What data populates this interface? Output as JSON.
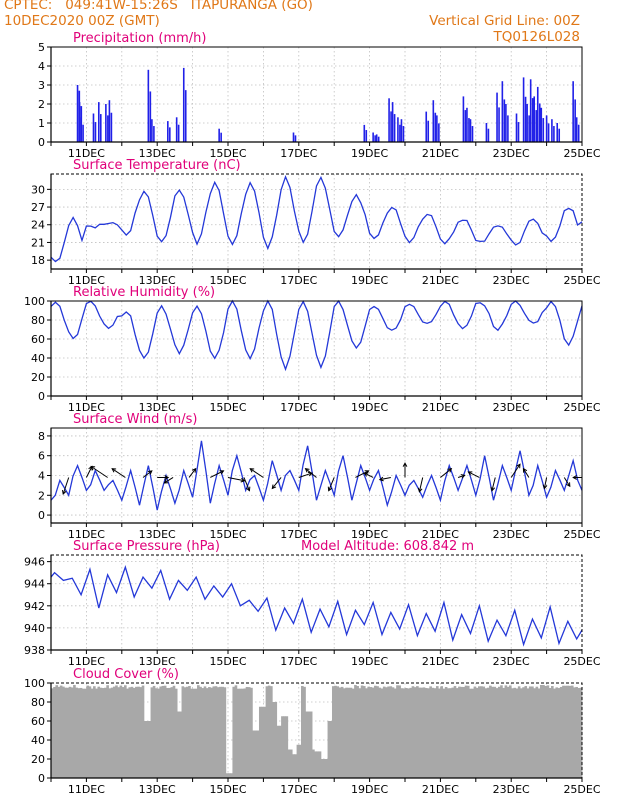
{
  "header": {
    "line1_left": "CPTEC:   049:41W-15:26S   ITAPURANGA (GO)",
    "line2_left": "10DEC2020 00Z (GMT)",
    "line2_right": "Vertical Grid Line: 00Z",
    "line3_right": "TQ0126L028"
  },
  "colors": {
    "header": "#e07818",
    "title": "#e0007a",
    "series": "#2438d8",
    "bars": "#2020e8",
    "cloud": "#a8a8a8"
  },
  "chart_data": [
    {
      "type": "bar",
      "title": "Precipitation (mm/h)",
      "ylim": [
        0,
        5
      ],
      "yticks": [
        0,
        1,
        2,
        3,
        4,
        5
      ],
      "xlim_days": [
        10.0,
        25.0
      ],
      "xtick_labels": [
        "11DEC",
        "13DEC",
        "15DEC",
        "17DEC",
        "19DEC",
        "21DEC",
        "23DEC",
        "25DEC"
      ],
      "spikes": [
        {
          "day": 10.75,
          "value": 3.0
        },
        {
          "day": 10.8,
          "value": 2.7
        },
        {
          "day": 10.85,
          "value": 1.3
        },
        {
          "day": 11.2,
          "value": 1.5
        },
        {
          "day": 11.35,
          "value": 2.1
        },
        {
          "day": 11.55,
          "value": 2.0
        },
        {
          "day": 11.65,
          "value": 2.2
        },
        {
          "day": 12.75,
          "value": 3.8
        },
        {
          "day": 12.85,
          "value": 1.2
        },
        {
          "day": 13.3,
          "value": 1.1
        },
        {
          "day": 13.55,
          "value": 1.3
        },
        {
          "day": 13.75,
          "value": 3.9
        },
        {
          "day": 14.75,
          "value": 0.7
        },
        {
          "day": 16.85,
          "value": 0.5
        },
        {
          "day": 18.85,
          "value": 0.9
        },
        {
          "day": 19.1,
          "value": 0.5
        },
        {
          "day": 19.2,
          "value": 0.4
        },
        {
          "day": 19.55,
          "value": 2.3
        },
        {
          "day": 19.65,
          "value": 2.1
        },
        {
          "day": 19.8,
          "value": 1.3
        },
        {
          "day": 19.9,
          "value": 1.2
        },
        {
          "day": 20.6,
          "value": 1.6
        },
        {
          "day": 20.8,
          "value": 2.2
        },
        {
          "day": 20.9,
          "value": 1.4
        },
        {
          "day": 21.65,
          "value": 2.4
        },
        {
          "day": 21.75,
          "value": 1.8
        },
        {
          "day": 21.85,
          "value": 1.2
        },
        {
          "day": 22.3,
          "value": 1.0
        },
        {
          "day": 22.6,
          "value": 2.6
        },
        {
          "day": 22.75,
          "value": 3.2
        },
        {
          "day": 22.85,
          "value": 2.0
        },
        {
          "day": 23.15,
          "value": 1.5
        },
        {
          "day": 23.35,
          "value": 3.4
        },
        {
          "day": 23.45,
          "value": 2.0
        },
        {
          "day": 23.55,
          "value": 3.3
        },
        {
          "day": 23.65,
          "value": 2.4
        },
        {
          "day": 23.75,
          "value": 2.9
        },
        {
          "day": 23.85,
          "value": 1.8
        },
        {
          "day": 24.0,
          "value": 1.4
        },
        {
          "day": 24.15,
          "value": 1.2
        },
        {
          "day": 24.3,
          "value": 1.0
        },
        {
          "day": 24.75,
          "value": 3.2
        },
        {
          "day": 24.85,
          "value": 1.3
        }
      ]
    },
    {
      "type": "line",
      "title": "Surface Temperature (nC)",
      "ylim": [
        16.5,
        32.6
      ],
      "yticks": [
        18,
        21,
        24,
        27,
        30
      ],
      "xlim_days": [
        10.0,
        25.0
      ],
      "xtick_labels": [
        "11DEC",
        "13DEC",
        "15DEC",
        "17DEC",
        "19DEC",
        "21DEC",
        "23DEC",
        "25DEC"
      ],
      "daily_min": [
        17.5,
        23.5,
        22.0,
        21.0,
        21.0,
        20.5,
        20.0,
        21.0,
        22.0,
        21.5,
        21.0,
        21.0,
        21.0,
        20.5,
        21.0
      ],
      "daily_max": [
        25.0,
        24.5,
        29.5,
        30.0,
        31.0,
        31.0,
        32.0,
        32.0,
        29.0,
        27.0,
        26.0,
        25.0,
        24.0,
        25.0,
        27.0
      ],
      "end_value": 24.5
    },
    {
      "type": "line",
      "title": "Relative Humidity (%)",
      "ylim": [
        0,
        100
      ],
      "yticks": [
        0,
        20,
        40,
        60,
        80,
        100
      ],
      "xlim_days": [
        10.0,
        25.0
      ],
      "xtick_labels": [
        "11DEC",
        "13DEC",
        "15DEC",
        "17DEC",
        "19DEC",
        "21DEC",
        "23DEC",
        "25DEC"
      ],
      "daily_min": [
        60,
        70,
        40,
        45,
        40,
        40,
        30,
        32,
        50,
        68,
        75,
        70,
        70,
        75,
        55
      ],
      "daily_max": [
        100,
        100,
        90,
        95,
        95,
        100,
        100,
        100,
        100,
        95,
        98,
        100,
        100,
        100,
        100
      ],
      "end_value": 95
    },
    {
      "type": "line",
      "title": "Surface Wind (m/s)",
      "ylim": [
        -0.8,
        8.8
      ],
      "yticks": [
        0,
        2,
        4,
        6,
        8
      ],
      "xlim_days": [
        10.0,
        25.0
      ],
      "xtick_labels": [
        "11DEC",
        "13DEC",
        "15DEC",
        "17DEC",
        "19DEC",
        "21DEC",
        "23DEC",
        "25DEC"
      ],
      "minima": [
        1.5,
        2.0,
        2.5,
        2.5,
        1.5,
        1.0,
        0.5,
        1.2,
        1.8,
        1.2,
        2.0,
        2.5,
        1.5,
        2.5,
        2.5,
        1.5,
        2.0,
        1.5,
        2.5,
        1.0,
        2.0,
        1.8,
        1.5,
        2.5,
        2.0,
        1.5,
        2.5,
        2.0,
        1.8,
        2.5
      ],
      "maxima": [
        3.5,
        5.0,
        4.5,
        3.5,
        4.5,
        5.0,
        4.0,
        4.5,
        7.5,
        5.0,
        6.0,
        4.0,
        5.5,
        4.5,
        7.0,
        4.5,
        6.0,
        5.0,
        4.5,
        4.0,
        3.5,
        4.0,
        5.0,
        5.0,
        6.0,
        5.0,
        6.5,
        5.0,
        4.5,
        5.5
      ],
      "arrows": [
        {
          "day": 10.5,
          "u": -0.5,
          "v": -1.5
        },
        {
          "day": 11.0,
          "u": 0.5,
          "v": 1.0
        },
        {
          "day": 11.6,
          "u": -1.5,
          "v": 1.0
        },
        {
          "day": 12.1,
          "u": -1.2,
          "v": 0.8
        },
        {
          "day": 12.6,
          "u": 0.8,
          "v": 0.6
        },
        {
          "day": 13.0,
          "u": 1.0,
          "v": 0.0
        },
        {
          "day": 13.45,
          "u": -0.8,
          "v": -0.5
        },
        {
          "day": 13.9,
          "u": 0.6,
          "v": 0.8
        },
        {
          "day": 14.5,
          "u": 1.2,
          "v": 0.6
        },
        {
          "day": 15.0,
          "u": 1.5,
          "v": -0.3
        },
        {
          "day": 15.45,
          "u": 0.5,
          "v": -1.2
        },
        {
          "day": 16.0,
          "u": -1.2,
          "v": 0.8
        },
        {
          "day": 16.5,
          "u": -0.8,
          "v": -1.0
        },
        {
          "day": 17.0,
          "u": 1.2,
          "v": 0.4
        },
        {
          "day": 17.5,
          "u": -1.0,
          "v": 0.8
        },
        {
          "day": 18.0,
          "u": -0.5,
          "v": -1.2
        },
        {
          "day": 18.6,
          "u": 1.2,
          "v": 0.6
        },
        {
          "day": 19.1,
          "u": -0.8,
          "v": 0.4
        },
        {
          "day": 19.6,
          "u": -1.0,
          "v": -0.2
        },
        {
          "day": 20.0,
          "u": 0.0,
          "v": 1.3
        },
        {
          "day": 20.5,
          "u": -0.3,
          "v": -1.3
        },
        {
          "day": 21.0,
          "u": 1.0,
          "v": 0.8
        },
        {
          "day": 21.5,
          "u": 0.6,
          "v": 0.2
        },
        {
          "day": 22.1,
          "u": -1.0,
          "v": 0.5
        },
        {
          "day": 22.55,
          "u": -0.3,
          "v": -1.2
        },
        {
          "day": 23.0,
          "u": 0.8,
          "v": 1.2
        },
        {
          "day": 23.5,
          "u": -0.5,
          "v": 0.8
        },
        {
          "day": 24.0,
          "u": -0.2,
          "v": -1.0
        },
        {
          "day": 24.5,
          "u": 0.5,
          "v": -0.8
        },
        {
          "day": 25.0,
          "u": -0.8,
          "v": 0.0
        }
      ]
    },
    {
      "type": "line",
      "title": "Surface Pressure (hPa)",
      "annotation": "Model Altitude: 608.842 m",
      "ylim": [
        938.0,
        946.6
      ],
      "yticks": [
        938,
        940,
        942,
        944,
        946
      ],
      "xlim_days": [
        10.0,
        25.0
      ],
      "xtick_labels": [
        "11DEC",
        "13DEC",
        "15DEC",
        "17DEC",
        "19DEC",
        "21DEC",
        "23DEC",
        "25DEC"
      ],
      "semidiurnal_max": [
        945.0,
        944.5,
        945.3,
        944.8,
        945.5,
        944.6,
        945.2,
        944.3,
        944.6,
        943.8,
        944.0,
        942.5,
        942.7,
        941.8,
        942.6,
        941.7,
        942.4,
        941.6,
        942.3,
        941.4,
        942.1,
        941.3,
        942.3,
        941.2,
        942.0,
        940.7,
        941.6,
        940.8,
        941.9,
        940.6
      ],
      "semidiurnal_min": [
        944.3,
        943.0,
        941.8,
        943.2,
        942.8,
        943.6,
        942.6,
        943.4,
        942.6,
        942.8,
        942.0,
        941.5,
        939.8,
        940.4,
        939.6,
        940.1,
        939.4,
        940.3,
        939.4,
        939.9,
        939.3,
        939.7,
        938.9,
        939.5,
        938.8,
        939.3,
        938.5,
        939.1,
        938.6,
        939.0
      ],
      "end_value": 939.8
    },
    {
      "type": "area",
      "title": "Cloud Cover (%)",
      "ylim": [
        0,
        100
      ],
      "yticks": [
        0,
        20,
        40,
        60,
        80,
        100
      ],
      "xlim_days": [
        10.0,
        25.0
      ],
      "xtick_labels": [
        "11DEC",
        "13DEC",
        "15DEC",
        "17DEC",
        "19DEC",
        "21DEC",
        "23DEC",
        "25DEC"
      ],
      "baseline": 98,
      "dips": [
        {
          "day": 10.9,
          "value": 94
        },
        {
          "day": 11.45,
          "value": 95
        },
        {
          "day": 12.3,
          "value": 96
        },
        {
          "day": 12.7,
          "value": 60
        },
        {
          "day": 13.6,
          "value": 70
        },
        {
          "day": 14.0,
          "value": 94
        },
        {
          "day": 14.8,
          "value": 96
        },
        {
          "day": 15.0,
          "value": 5
        },
        {
          "day": 15.3,
          "value": 94
        },
        {
          "day": 15.75,
          "value": 50
        },
        {
          "day": 15.95,
          "value": 75
        },
        {
          "day": 16.3,
          "value": 80
        },
        {
          "day": 16.4,
          "value": 55
        },
        {
          "day": 16.55,
          "value": 65
        },
        {
          "day": 16.75,
          "value": 30
        },
        {
          "day": 16.85,
          "value": 25
        },
        {
          "day": 16.95,
          "value": 35
        },
        {
          "day": 17.25,
          "value": 70
        },
        {
          "day": 17.4,
          "value": 30
        },
        {
          "day": 17.5,
          "value": 28
        },
        {
          "day": 17.6,
          "value": 35
        },
        {
          "day": 17.7,
          "value": 20
        },
        {
          "day": 17.8,
          "value": 60
        },
        {
          "day": 18.4,
          "value": 95
        },
        {
          "day": 21.85,
          "value": 94
        },
        {
          "day": 22.5,
          "value": 96
        }
      ]
    }
  ]
}
